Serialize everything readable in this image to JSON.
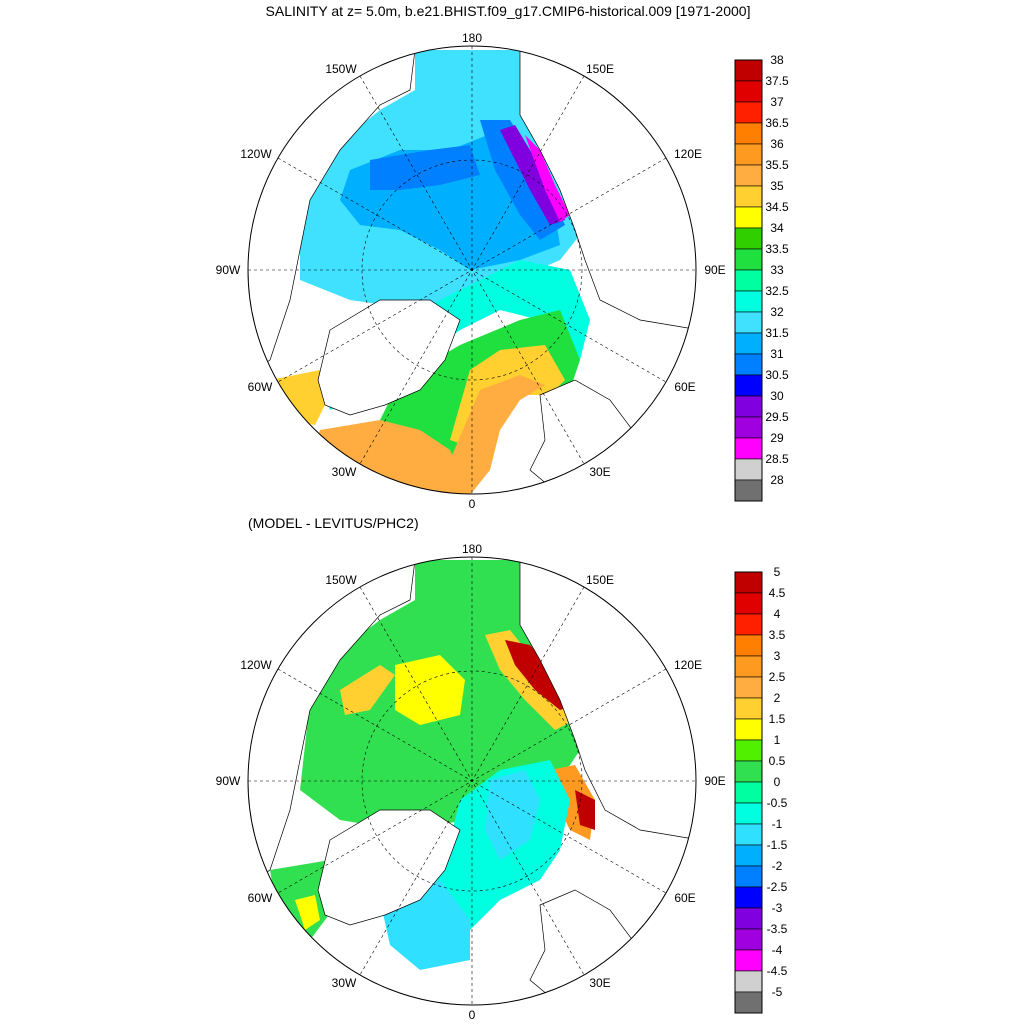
{
  "figure": {
    "title_top": "SALINITY at z=   5.0m, b.e21.BHIST.f09_g17.CMIP6-historical.009 [1971-2000]",
    "title_bottom": "(MODEL - LEVITUS/PHC2)"
  },
  "graticule_labels": [
    "180",
    "150E",
    "120E",
    "90E",
    "60E",
    "30E",
    "0",
    "30W",
    "60W",
    "90W",
    "120W",
    "150W"
  ],
  "maps": [
    {
      "id": "salinity",
      "colorbar": {
        "labels": [
          "38",
          "37.5",
          "37",
          "36.5",
          "36",
          "35.5",
          "35",
          "34.5",
          "34",
          "33.5",
          "33",
          "32.5",
          "32",
          "31.5",
          "31",
          "30.5",
          "30",
          "29.5",
          "29",
          "28.5",
          "28"
        ],
        "colors": [
          "#c00000",
          "#e00000",
          "#ff2000",
          "#ff8000",
          "#ff9a20",
          "#ffad40",
          "#ffd030",
          "#ffff00",
          "#30d000",
          "#20e040",
          "#00ffa0",
          "#00ffe0",
          "#40e0ff",
          "#00b0ff",
          "#0080ff",
          "#0000ff",
          "#8000e0",
          "#a000e0",
          "#ff00ff",
          "#d0d0d0",
          "#707070"
        ]
      }
    },
    {
      "id": "difference",
      "colorbar": {
        "labels": [
          "5",
          "4.5",
          "4",
          "3.5",
          "3",
          "2.5",
          "2",
          "1.5",
          "1",
          "0.5",
          "0",
          "-0.5",
          "-1",
          "-1.5",
          "-2",
          "-2.5",
          "-3",
          "-3.5",
          "-4",
          "-4.5",
          "-5"
        ],
        "colors": [
          "#c00000",
          "#e00000",
          "#ff2000",
          "#ff8000",
          "#ff9a20",
          "#ffad40",
          "#ffd030",
          "#ffff00",
          "#50f000",
          "#30e050",
          "#00ffa0",
          "#00ffe0",
          "#30e0ff",
          "#00b0ff",
          "#0080ff",
          "#0000ff",
          "#8000e0",
          "#a000e0",
          "#ff00ff",
          "#d0d0d0",
          "#707070"
        ]
      }
    }
  ]
}
